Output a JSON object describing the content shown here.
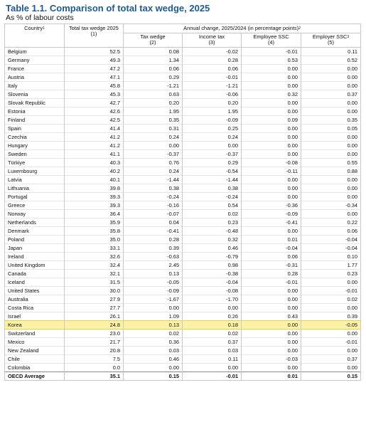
{
  "title": "Table 1.1. Comparison of total tax wedge, 2025",
  "subtitle": "As % of labour costs",
  "headers": {
    "country": "Country",
    "country_note": "1",
    "total": "Total tax wedge 2025",
    "total_num": "(1)",
    "annual": "Annual change, 2025/2024 (in percentage points)",
    "annual_note": "2",
    "tax_wedge": "Tax wedge",
    "tax_wedge_num": "(2)",
    "income_tax": "Income tax",
    "income_tax_num": "(3)",
    "employee_ssc": "Employee SSC",
    "employee_ssc_num": "(4)",
    "employer_ssc": "Employer SSC",
    "employer_ssc_note": "3",
    "employer_ssc_num": "(5)"
  },
  "highlight_color": "#fdf2a6",
  "rows": [
    [
      "Belgium",
      "52.5",
      "0.08",
      "-0.02",
      "-0.01",
      "0.11"
    ],
    [
      "Germany",
      "49.3",
      "1.34",
      "0.28",
      "0.53",
      "0.52"
    ],
    [
      "France",
      "47.2",
      "0.06",
      "0.06",
      "0.00",
      "0.00"
    ],
    [
      "Austria",
      "47.1",
      "0.29",
      "-0.01",
      "0.00",
      "0.00"
    ],
    [
      "Italy",
      "45.8",
      "-1.21",
      "-1.21",
      "0.00",
      "0.00"
    ],
    [
      "Slovenia",
      "45.3",
      "0.63",
      "-0.06",
      "0.32",
      "0.37"
    ],
    [
      "Slovak Republic",
      "42.7",
      "0.20",
      "0.20",
      "0.00",
      "0.00"
    ],
    [
      "Estonia",
      "42.6",
      "1.95",
      "1.95",
      "0.00",
      "0.00"
    ],
    [
      "Finland",
      "42.5",
      "0.35",
      "-0.09",
      "0.09",
      "0.35"
    ],
    [
      "Spain",
      "41.4",
      "0.31",
      "0.25",
      "0.00",
      "0.05"
    ],
    [
      "Czechia",
      "41.2",
      "0.24",
      "0.24",
      "0.00",
      "0.00"
    ],
    [
      "Hungary",
      "41.2",
      "0.00",
      "0.00",
      "0.00",
      "0.00"
    ],
    [
      "Sweden",
      "41.1",
      "-0.37",
      "-0.37",
      "0.00",
      "0.00"
    ],
    [
      "Türkiye",
      "40.3",
      "0.76",
      "0.29",
      "-0.08",
      "0.55"
    ],
    [
      "Luxembourg",
      "40.2",
      "0.24",
      "-0.54",
      "-0.11",
      "0.88"
    ],
    [
      "Latvia",
      "40.1",
      "-1.44",
      "-1.44",
      "0.00",
      "0.00"
    ],
    [
      "Lithuania",
      "39.8",
      "0.38",
      "0.38",
      "0.00",
      "0.00"
    ],
    [
      "Portugal",
      "39.3",
      "-0.24",
      "-0.24",
      "0.00",
      "0.00"
    ],
    [
      "Greece",
      "39.3",
      "-0.16",
      "0.54",
      "-0.36",
      "-0.34"
    ],
    [
      "Norway",
      "36.4",
      "-0.07",
      "0.02",
      "-0.09",
      "0.00"
    ],
    [
      "Netherlands",
      "35.9",
      "0.04",
      "0.23",
      "-0.41",
      "0.22"
    ],
    [
      "Denmark",
      "35.8",
      "-0.41",
      "-0.48",
      "0.00",
      "0.06"
    ],
    [
      "Poland",
      "35.0",
      "0.28",
      "0.32",
      "0.01",
      "-0.04"
    ],
    [
      "Japan",
      "33.1",
      "0.39",
      "0.46",
      "-0.04",
      "-0.04"
    ],
    [
      "Ireland",
      "32.6",
      "-0.63",
      "-0.79",
      "0.06",
      "0.10"
    ],
    [
      "United Kingdom",
      "32.4",
      "2.45",
      "0.98",
      "-0.31",
      "1.77"
    ],
    [
      "Canada",
      "32.1",
      "0.13",
      "-0.38",
      "0.28",
      "0.23"
    ],
    [
      "Iceland",
      "31.5",
      "-0.05",
      "-0.04",
      "-0.01",
      "0.00"
    ],
    [
      "United States",
      "30.0",
      "-0.09",
      "-0.08",
      "0.00",
      "-0.01"
    ],
    [
      "Australia",
      "27.9",
      "-1.67",
      "-1.70",
      "0.00",
      "0.02"
    ],
    [
      "Costa Rica",
      "27.7",
      "0.00",
      "0.00",
      "0.00",
      "0.00"
    ],
    [
      "Israel",
      "26.1",
      "1.09",
      "0.26",
      "0.43",
      "0.39"
    ],
    [
      "Korea",
      "24.8",
      "0.13",
      "0.18",
      "0.00",
      "-0.05"
    ],
    [
      "Switzerland",
      "23.0",
      "0.02",
      "0.02",
      "0.00",
      "0.00"
    ],
    [
      "Mexico",
      "21.7",
      "0.36",
      "0.37",
      "0.00",
      "-0.01"
    ],
    [
      "New Zealand",
      "20.8",
      "0.03",
      "0.03",
      "0.00",
      "0.00"
    ],
    [
      "Chile",
      "7.5",
      "0.46",
      "0.11",
      "-0.03",
      "0.37"
    ],
    [
      "Colombia",
      "0.0",
      "0.00",
      "0.00",
      "0.00",
      "0.00"
    ]
  ],
  "average": [
    "OECD Average",
    "35.1",
    "0.15",
    "-0.01",
    "0.01",
    "0.15"
  ]
}
